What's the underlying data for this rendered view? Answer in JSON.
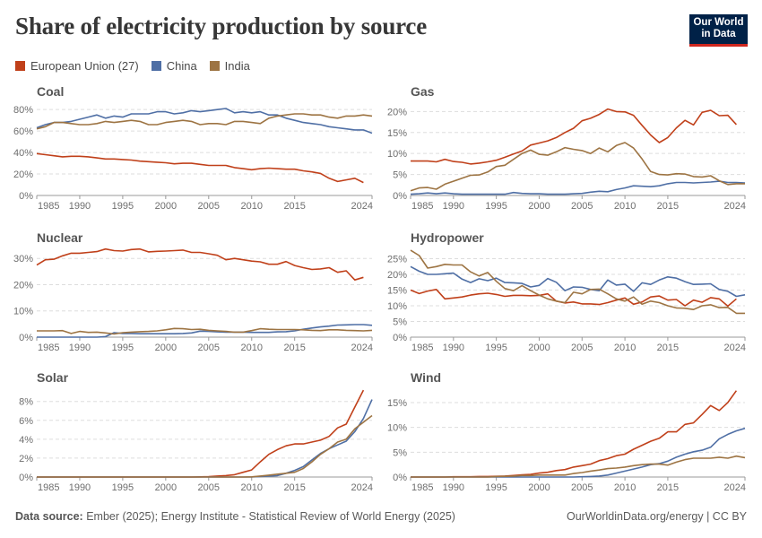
{
  "header": {
    "title": "Share of electricity production by source",
    "logo": "Our World in Data"
  },
  "legend": [
    {
      "name": "European Union (27)",
      "color": "#c0401a"
    },
    {
      "name": "China",
      "color": "#4f6fa5"
    },
    {
      "name": "India",
      "color": "#9d7443"
    }
  ],
  "footer": {
    "source_label": "Data source:",
    "source_text": "Ember (2025); Energy Institute - Statistical Review of World Energy (2025)",
    "right": "OurWorldinData.org/energy | CC BY"
  },
  "chart_data": [
    {
      "type": "line",
      "title": "Coal",
      "xlim": [
        1985,
        2024
      ],
      "xticks": [
        1985,
        1990,
        1995,
        2000,
        2005,
        2010,
        2015,
        2024
      ],
      "ylim": [
        0,
        86
      ],
      "yticks": [
        0,
        20,
        40,
        60,
        80
      ],
      "yunit": "%",
      "grid": true,
      "series": [
        {
          "name": "European Union (27)",
          "values": [
            39,
            38,
            37,
            36,
            36.5,
            36.5,
            36,
            35,
            34,
            34,
            33.5,
            33,
            32,
            31.5,
            31,
            30.5,
            29.5,
            30,
            30,
            29,
            28,
            28,
            28,
            26,
            25,
            24,
            25,
            25.5,
            25,
            24.5,
            24.5,
            23,
            22,
            20.5,
            16,
            13,
            14.5,
            16,
            12,
            null
          ]
        },
        {
          "name": "China",
          "values": [
            63,
            66,
            68,
            68,
            69,
            71,
            73,
            75,
            72,
            74,
            73,
            76,
            76,
            76,
            78,
            78,
            76,
            77,
            79,
            78,
            79,
            80,
            81,
            77,
            78,
            77,
            78,
            75,
            75,
            72,
            70,
            68,
            67,
            66,
            64,
            63,
            62,
            61,
            61,
            58
          ]
        },
        {
          "name": "India",
          "values": [
            62,
            64,
            68,
            68,
            67,
            66,
            66,
            67,
            69,
            68,
            69,
            70,
            69,
            66,
            66,
            68,
            69,
            70,
            69,
            66,
            67,
            67,
            66,
            69,
            69,
            68,
            67,
            72,
            74,
            75,
            76,
            76,
            75,
            75,
            73,
            72,
            74,
            74,
            75,
            74
          ]
        }
      ]
    },
    {
      "type": "line",
      "title": "Gas",
      "xlim": [
        1985,
        2024
      ],
      "xticks": [
        1985,
        1990,
        1995,
        2000,
        2005,
        2010,
        2015,
        2024
      ],
      "ylim": [
        0,
        22
      ],
      "yticks": [
        0,
        5,
        10,
        15,
        20
      ],
      "yunit": "%",
      "grid": true,
      "series": [
        {
          "name": "European Union (27)",
          "values": [
            8.2,
            8.2,
            8.2,
            8.0,
            8.6,
            8.1,
            7.9,
            7.5,
            7.7,
            8.0,
            8.4,
            9.1,
            9.9,
            10.6,
            12.0,
            12.5,
            13.0,
            13.8,
            15.0,
            16.0,
            17.8,
            18.4,
            19.3,
            20.6,
            20.0,
            19.9,
            19.1,
            16.7,
            14.4,
            12.6,
            13.8,
            16.1,
            17.9,
            16.8,
            19.8,
            20.3,
            19.0,
            19.1,
            16.9,
            null
          ]
        },
        {
          "name": "China",
          "values": [
            0.3,
            0.4,
            0.6,
            0.4,
            0.6,
            0.4,
            0.3,
            0.3,
            0.3,
            0.3,
            0.3,
            0.3,
            0.7,
            0.5,
            0.4,
            0.4,
            0.3,
            0.3,
            0.3,
            0.4,
            0.5,
            0.8,
            1.0,
            0.9,
            1.4,
            1.8,
            2.3,
            2.2,
            2.1,
            2.3,
            2.8,
            3.1,
            3.1,
            3.0,
            3.1,
            3.2,
            3.4,
            3.1,
            3.1,
            3.0
          ]
        },
        {
          "name": "India",
          "values": [
            1.1,
            1.8,
            1.9,
            1.5,
            2.7,
            3.4,
            4.1,
            4.8,
            4.9,
            5.6,
            6.9,
            7.2,
            8.6,
            10.0,
            10.8,
            9.8,
            9.6,
            10.4,
            11.4,
            11.0,
            10.7,
            10.0,
            11.3,
            10.4,
            11.9,
            12.6,
            11.3,
            8.7,
            5.7,
            5.0,
            4.9,
            5.2,
            5.1,
            4.5,
            4.4,
            4.7,
            3.5,
            2.6,
            2.8,
            2.8
          ]
        }
      ]
    },
    {
      "type": "line",
      "title": "Nuclear",
      "xlim": [
        1985,
        2024
      ],
      "xticks": [
        1985,
        1990,
        1995,
        2000,
        2005,
        2010,
        2015,
        2024
      ],
      "ylim": [
        0,
        33.5
      ],
      "yticks": [
        0,
        10,
        20,
        30
      ],
      "yunit": "%",
      "grid": true,
      "series": [
        {
          "name": "European Union (27)",
          "values": [
            27.5,
            29.5,
            29.7,
            31,
            32,
            32,
            32.3,
            32.6,
            33.6,
            33,
            32.8,
            33.4,
            33.6,
            32.5,
            32.7,
            32.8,
            33,
            33.2,
            32.3,
            32.3,
            31.8,
            31.2,
            29.5,
            30,
            29.5,
            29,
            28.7,
            27.8,
            27.8,
            28.8,
            27.3,
            26.5,
            25.8,
            26.0,
            26.5,
            24.7,
            25.3,
            21.8,
            22.8,
            null
          ]
        },
        {
          "name": "China",
          "values": [
            0,
            0,
            0,
            0,
            0,
            0,
            0,
            0,
            0.2,
            1.7,
            1.4,
            1.4,
            1.3,
            1.3,
            1.3,
            1.3,
            1.3,
            1.4,
            1.6,
            2.3,
            2.2,
            2.0,
            1.9,
            1.9,
            1.9,
            1.8,
            1.8,
            1.8,
            2.0,
            2.1,
            2.4,
            3.0,
            3.5,
            3.9,
            4.2,
            4.6,
            4.7,
            4.8,
            4.8,
            4.5
          ]
        },
        {
          "name": "India",
          "values": [
            2.4,
            2.4,
            2.4,
            2.5,
            1.4,
            2.2,
            1.8,
            1.9,
            1.6,
            1.2,
            1.7,
            1.9,
            2.1,
            2.2,
            2.4,
            2.8,
            3.3,
            3.2,
            2.9,
            3.0,
            2.6,
            2.4,
            2.2,
            1.9,
            1.9,
            2.5,
            3.2,
            3.0,
            2.9,
            2.9,
            2.9,
            2.8,
            2.6,
            2.5,
            2.8,
            2.8,
            2.6,
            2.5,
            2.4,
            2.6
          ]
        }
      ]
    },
    {
      "type": "line",
      "title": "Hydropower",
      "xlim": [
        1985,
        2024
      ],
      "xticks": [
        1985,
        1990,
        1995,
        2000,
        2005,
        2010,
        2015,
        2024
      ],
      "ylim": [
        0,
        28
      ],
      "yticks": [
        0,
        5,
        10,
        15,
        20,
        25
      ],
      "yunit": "%",
      "grid": true,
      "series": [
        {
          "name": "European Union (27)",
          "values": [
            15,
            13.9,
            14.7,
            15.2,
            12.2,
            12.5,
            12.8,
            13.4,
            13.8,
            14,
            13.6,
            13,
            13.3,
            13.3,
            13.2,
            13.3,
            13.8,
            11.5,
            10.9,
            11.2,
            10.6,
            10.6,
            10.4,
            11,
            11.8,
            12.5,
            10.5,
            11.2,
            12.8,
            13.1,
            11.8,
            12,
            10,
            11.8,
            11.1,
            12.6,
            12.2,
            9.9,
            12.2,
            null
          ]
        },
        {
          "name": "China",
          "values": [
            22.5,
            21,
            20,
            20,
            20.2,
            20.4,
            18.5,
            17.4,
            18.6,
            18,
            18.8,
            17.4,
            17.3,
            17.1,
            16,
            16.5,
            18.7,
            17.5,
            14.8,
            16,
            15.9,
            15.2,
            14.8,
            18.2,
            16.6,
            16.9,
            14.6,
            17.3,
            16.8,
            18.2,
            19.2,
            18.8,
            17.7,
            16.8,
            16.9,
            17,
            15.2,
            14.6,
            13,
            13.5
          ]
        },
        {
          "name": "India",
          "values": [
            27.7,
            26,
            22,
            22.5,
            23.2,
            23,
            23,
            20.8,
            19.5,
            20.6,
            17.8,
            15.5,
            14.8,
            16.4,
            14.8,
            13.4,
            12.2,
            11.5,
            11,
            14.3,
            13.8,
            15.2,
            15.3,
            13.8,
            12.2,
            11.5,
            12.8,
            10.5,
            11.5,
            11,
            10,
            9.3,
            9.2,
            8.8,
            10,
            10.3,
            9.4,
            9.5,
            7.6,
            7.6
          ]
        }
      ]
    },
    {
      "type": "line",
      "title": "Solar",
      "xlim": [
        1985,
        2024
      ],
      "xticks": [
        1985,
        1990,
        1995,
        2000,
        2005,
        2010,
        2015,
        2024
      ],
      "ylim": [
        0,
        9.3
      ],
      "yticks": [
        0,
        2,
        4,
        6,
        8
      ],
      "yunit": "%",
      "grid": true,
      "series": [
        {
          "name": "European Union (27)",
          "values": [
            0,
            0,
            0,
            0,
            0,
            0,
            0,
            0,
            0,
            0,
            0,
            0,
            0,
            0,
            0,
            0,
            0,
            0,
            0,
            0.02,
            0.05,
            0.1,
            0.15,
            0.25,
            0.5,
            0.75,
            1.6,
            2.4,
            2.9,
            3.3,
            3.5,
            3.5,
            3.7,
            3.9,
            4.3,
            5.2,
            5.6,
            7.4,
            9.2,
            null
          ]
        },
        {
          "name": "China",
          "values": [
            0,
            0,
            0,
            0,
            0,
            0,
            0,
            0,
            0,
            0,
            0,
            0,
            0,
            0,
            0,
            0,
            0,
            0,
            0,
            0,
            0,
            0,
            0,
            0,
            0,
            0,
            0.05,
            0.1,
            0.15,
            0.4,
            0.7,
            1.1,
            1.8,
            2.5,
            3.0,
            3.4,
            3.8,
            4.8,
            6.2,
            8.2
          ]
        },
        {
          "name": "India",
          "values": [
            0,
            0,
            0,
            0,
            0,
            0,
            0,
            0,
            0,
            0,
            0,
            0,
            0,
            0,
            0,
            0,
            0,
            0,
            0,
            0,
            0,
            0,
            0,
            0,
            0,
            0.02,
            0.1,
            0.2,
            0.3,
            0.4,
            0.5,
            0.9,
            1.6,
            2.4,
            3.0,
            3.7,
            4.0,
            5.1,
            5.8,
            6.5
          ]
        }
      ]
    },
    {
      "type": "line",
      "title": "Wind",
      "xlim": [
        1985,
        2024
      ],
      "xticks": [
        1985,
        1990,
        1995,
        2000,
        2005,
        2010,
        2015,
        2024
      ],
      "ylim": [
        0,
        17.7
      ],
      "yticks": [
        0,
        5,
        10,
        15
      ],
      "yunit": "%",
      "grid": true,
      "series": [
        {
          "name": "European Union (27)",
          "values": [
            0,
            0,
            0,
            0,
            0,
            0.05,
            0.05,
            0.05,
            0.1,
            0.1,
            0.15,
            0.2,
            0.3,
            0.45,
            0.55,
            0.8,
            0.95,
            1.3,
            1.5,
            2.0,
            2.3,
            2.6,
            3.3,
            3.7,
            4.3,
            4.6,
            5.6,
            6.4,
            7.2,
            7.8,
            9.1,
            9.1,
            10.6,
            10.9,
            12.6,
            14.4,
            13.4,
            15.0,
            17.4,
            null
          ]
        },
        {
          "name": "China",
          "values": [
            0,
            0,
            0,
            0,
            0,
            0,
            0,
            0,
            0,
            0,
            0,
            0,
            0,
            0,
            0,
            0,
            0,
            0,
            0,
            0,
            0.05,
            0.1,
            0.2,
            0.4,
            0.8,
            1.2,
            1.6,
            2.0,
            2.5,
            2.7,
            3.2,
            4.0,
            4.6,
            5.1,
            5.4,
            6.0,
            7.7,
            8.6,
            9.3,
            9.8
          ]
        },
        {
          "name": "India",
          "values": [
            0,
            0,
            0,
            0,
            0,
            0,
            0,
            0,
            0,
            0,
            0.1,
            0.15,
            0.2,
            0.3,
            0.3,
            0.4,
            0.4,
            0.4,
            0.4,
            0.7,
            0.9,
            1.2,
            1.4,
            1.7,
            1.8,
            2.0,
            2.3,
            2.5,
            2.6,
            2.6,
            2.4,
            3.0,
            3.5,
            3.8,
            3.8,
            3.8,
            4.0,
            3.8,
            4.2,
            3.9
          ]
        }
      ]
    }
  ]
}
